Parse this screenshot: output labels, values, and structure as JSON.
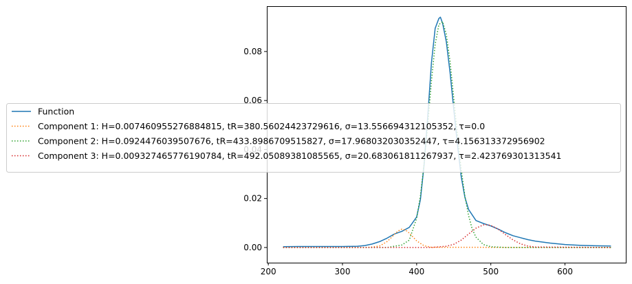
{
  "chart_data": {
    "type": "line",
    "title": "",
    "xlabel": "",
    "ylabel": "",
    "xlim": [
      198,
      682
    ],
    "ylim": [
      -0.0062,
      0.0985
    ],
    "xticks": [
      200,
      300,
      400,
      500,
      600
    ],
    "yticks": [
      0.0,
      0.02,
      0.04,
      0.06,
      0.08
    ],
    "ytick_labels": [
      "0.00",
      "0.02",
      "0.04",
      "0.06",
      "0.08"
    ],
    "grid": false,
    "legend_position": "center-left",
    "series": [
      {
        "name": "Function",
        "color": "#1f77b4",
        "style": "solid",
        "x": [
          220,
          240,
          260,
          280,
          300,
          320,
          330,
          340,
          350,
          360,
          370,
          380,
          390,
          395,
          400,
          405,
          410,
          415,
          420,
          425,
          430,
          432,
          435,
          440,
          445,
          450,
          455,
          460,
          465,
          470,
          480,
          490,
          500,
          510,
          520,
          530,
          540,
          550,
          560,
          580,
          600,
          620,
          640,
          662
        ],
        "y": [
          0.0003,
          0.0004,
          0.0004,
          0.0004,
          0.0004,
          0.0005,
          0.0008,
          0.0014,
          0.0024,
          0.0038,
          0.0055,
          0.0066,
          0.0082,
          0.0103,
          0.0125,
          0.0195,
          0.0335,
          0.0535,
          0.0755,
          0.0895,
          0.0935,
          0.094,
          0.0915,
          0.084,
          0.0715,
          0.0565,
          0.042,
          0.029,
          0.0205,
          0.0155,
          0.011,
          0.0098,
          0.0088,
          0.0075,
          0.006,
          0.0048,
          0.004,
          0.0032,
          0.0026,
          0.0018,
          0.0012,
          0.0009,
          0.0007,
          0.0006
        ]
      },
      {
        "name": "Component 1: H=0.007460955276884815, tR=380.56024423729616, σ=13.556694312105352, τ=0.0",
        "color": "#ff7f0e",
        "style": "dotted",
        "x": [
          220,
          330,
          340,
          350,
          360,
          365,
          370,
          375,
          380,
          385,
          390,
          395,
          400,
          410,
          420,
          662
        ],
        "y": [
          0,
          0.0,
          0.0002,
          0.0006,
          0.0024,
          0.0038,
          0.0054,
          0.0067,
          0.0075,
          0.0071,
          0.0059,
          0.0043,
          0.0027,
          0.0007,
          0.0001,
          0
        ]
      },
      {
        "name": "Component 2: H=0.0924476039507676, tR=433.8986709515827, σ=17.968032030352447, τ=4.156313372956902",
        "color": "#2ca02c",
        "style": "dotted",
        "x": [
          220,
          360,
          380,
          390,
          400,
          405,
          410,
          415,
          420,
          425,
          430,
          435,
          440,
          445,
          450,
          455,
          460,
          465,
          470,
          475,
          480,
          490,
          500,
          520,
          662
        ],
        "y": [
          0,
          0.0,
          0.001,
          0.003,
          0.012,
          0.021,
          0.034,
          0.05,
          0.068,
          0.083,
          0.091,
          0.0922,
          0.087,
          0.076,
          0.061,
          0.046,
          0.032,
          0.021,
          0.013,
          0.0075,
          0.0042,
          0.0012,
          0.0003,
          0.0,
          0
        ]
      },
      {
        "name": "Component 3: H=0.009327465776190784, tR=492.05089381085565, σ=20.683061811267937, τ=2.423769301313541",
        "color": "#d62728",
        "style": "dotted",
        "x": [
          220,
          420,
          440,
          450,
          460,
          470,
          480,
          490,
          495,
          500,
          510,
          520,
          530,
          540,
          550,
          560,
          662
        ],
        "y": [
          0,
          0.0,
          0.0005,
          0.0013,
          0.003,
          0.0055,
          0.0079,
          0.0092,
          0.0093,
          0.009,
          0.0075,
          0.0052,
          0.0031,
          0.0015,
          0.0006,
          0.0002,
          0
        ]
      }
    ]
  }
}
